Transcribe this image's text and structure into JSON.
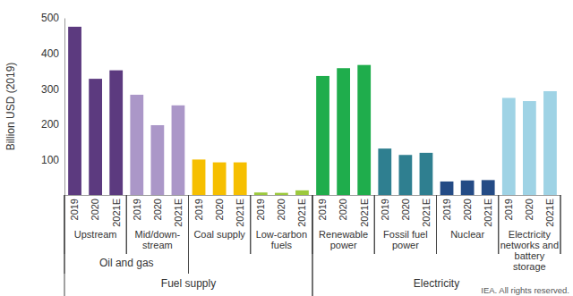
{
  "chart_data": {
    "type": "bar",
    "y_label": "Billion USD (2019)",
    "source": "IEA. All rights reserved.",
    "categories": [
      "2019",
      "2020",
      "2021E",
      "2019",
      "2020",
      "2021E",
      "2019",
      "2020",
      "2021E",
      "2019",
      "2020",
      "2021E",
      "2019",
      "2020",
      "2021E",
      "2019",
      "2020",
      "2021E",
      "2019",
      "2020",
      "2021E",
      "2019",
      "2020",
      "2021E"
    ],
    "values": [
      475,
      328,
      352,
      283,
      197,
      253,
      100,
      92,
      92,
      7,
      6,
      13,
      336,
      358,
      367,
      131,
      113,
      119,
      38,
      41,
      42,
      274,
      265,
      293
    ],
    "colors": [
      "#5c3a7f",
      "#5c3a7f",
      "#5c3a7f",
      "#ab97c8",
      "#ab97c8",
      "#ab97c8",
      "#f6bf00",
      "#f6bf00",
      "#f6bf00",
      "#9cc93d",
      "#9cc93d",
      "#9cc93d",
      "#1fad4c",
      "#1fad4c",
      "#1fad4c",
      "#2f7f90",
      "#2f7f90",
      "#2f7f90",
      "#244b85",
      "#244b85",
      "#244b85",
      "#9fd3e5",
      "#9fd3e5",
      "#9fd3e5"
    ],
    "group_levels": [
      [
        {
          "label": [
            "Upstream"
          ],
          "span": 3
        },
        {
          "label": [
            "Mid/down-",
            "stream"
          ],
          "span": 3
        },
        {
          "label": [
            "Coal supply"
          ],
          "span": 3
        },
        {
          "label": [
            "Low-carbon",
            "fuels"
          ],
          "span": 3
        },
        {
          "label": [
            "Renewable",
            "power"
          ],
          "span": 3
        },
        {
          "label": [
            "Fossil fuel",
            "power"
          ],
          "span": 3
        },
        {
          "label": [
            "Nuclear"
          ],
          "span": 3
        },
        {
          "label": [
            "Electricity",
            "networks and",
            "battery",
            "storage"
          ],
          "span": 3
        }
      ],
      [
        {
          "label": [
            "Oil and gas"
          ],
          "span": 6
        }
      ],
      [
        {
          "label": [
            "Fuel supply"
          ],
          "span": 12
        },
        {
          "label": [
            "Electricity"
          ],
          "span": 12
        }
      ]
    ],
    "ylim": [
      0,
      500
    ],
    "yticks": [
      100,
      200,
      300,
      400,
      500
    ],
    "grid": false
  }
}
